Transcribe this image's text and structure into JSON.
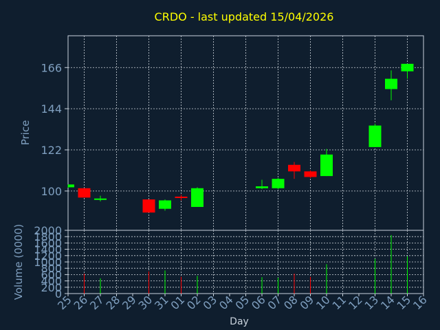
{
  "colors": {
    "background": "#0f1e2e",
    "axis": "#c9d3dd",
    "grid": "#d0d7de",
    "title": "#ffff00",
    "label": "#7f9fbf",
    "up": "#00ff00",
    "down": "#ff0000"
  },
  "chart_data": {
    "type": "candlestick",
    "title": "CRDO - last updated 15/04/2026",
    "xlabel": "Day",
    "price_panel": {
      "ylabel": "Price",
      "ylim": [
        79,
        183
      ],
      "yticks": [
        100,
        122,
        144,
        166
      ],
      "grid": true
    },
    "volume_panel": {
      "ylabel": "Volume (0000)",
      "ylim": [
        0,
        2000
      ],
      "yticks": [
        0,
        200,
        400,
        600,
        800,
        1000,
        1200,
        1400,
        1600,
        1800,
        2000
      ],
      "grid": true
    },
    "x_tick_labels": [
      "25",
      "26",
      "27",
      "28",
      "29",
      "30",
      "31",
      "01",
      "02",
      "03",
      "04",
      "05",
      "06",
      "07",
      "08",
      "09",
      "10",
      "11",
      "12",
      "13",
      "14",
      "15",
      "16"
    ],
    "candles": [
      {
        "x": "25",
        "open": 102,
        "high": 103.5,
        "low": 101.8,
        "close": 103.5,
        "volume": 0
      },
      {
        "x": "26",
        "open": 101.5,
        "high": 101.5,
        "low": 96.5,
        "close": 96.5,
        "volume": 630
      },
      {
        "x": "27",
        "open": 95.5,
        "high": 97.5,
        "low": 94.5,
        "close": 96,
        "volume": 480
      },
      {
        "x": "30",
        "open": 95.5,
        "high": 95.5,
        "low": 88.5,
        "close": 88.5,
        "volume": 700
      },
      {
        "x": "31",
        "open": 90.5,
        "high": 95.5,
        "low": 89.5,
        "close": 95,
        "volume": 730
      },
      {
        "x": "01",
        "open": 97,
        "high": 98,
        "low": 95,
        "close": 96.5,
        "volume": 530
      },
      {
        "x": "02",
        "open": 91.5,
        "high": 102,
        "low": 91.5,
        "close": 101.5,
        "volume": 560
      },
      {
        "x": "06",
        "open": 101.5,
        "high": 106,
        "low": 101,
        "close": 102.5,
        "volume": 520
      },
      {
        "x": "07",
        "open": 101.5,
        "high": 107,
        "low": 101,
        "close": 106.5,
        "volume": 500
      },
      {
        "x": "08",
        "open": 114,
        "high": 115.5,
        "low": 106.5,
        "close": 110.5,
        "volume": 630
      },
      {
        "x": "09",
        "open": 110.5,
        "high": 111,
        "low": 107,
        "close": 107.5,
        "volume": 530
      },
      {
        "x": "10",
        "open": 108,
        "high": 122.5,
        "low": 108,
        "close": 119.5,
        "volume": 930
      },
      {
        "x": "13",
        "open": 123.5,
        "high": 136,
        "low": 123.5,
        "close": 135,
        "volume": 1100
      },
      {
        "x": "14",
        "open": 154.5,
        "high": 164.5,
        "low": 148.5,
        "close": 160,
        "volume": 1850
      },
      {
        "x": "15",
        "open": 164,
        "high": 168,
        "low": 160,
        "close": 168,
        "volume": 1180
      }
    ]
  }
}
